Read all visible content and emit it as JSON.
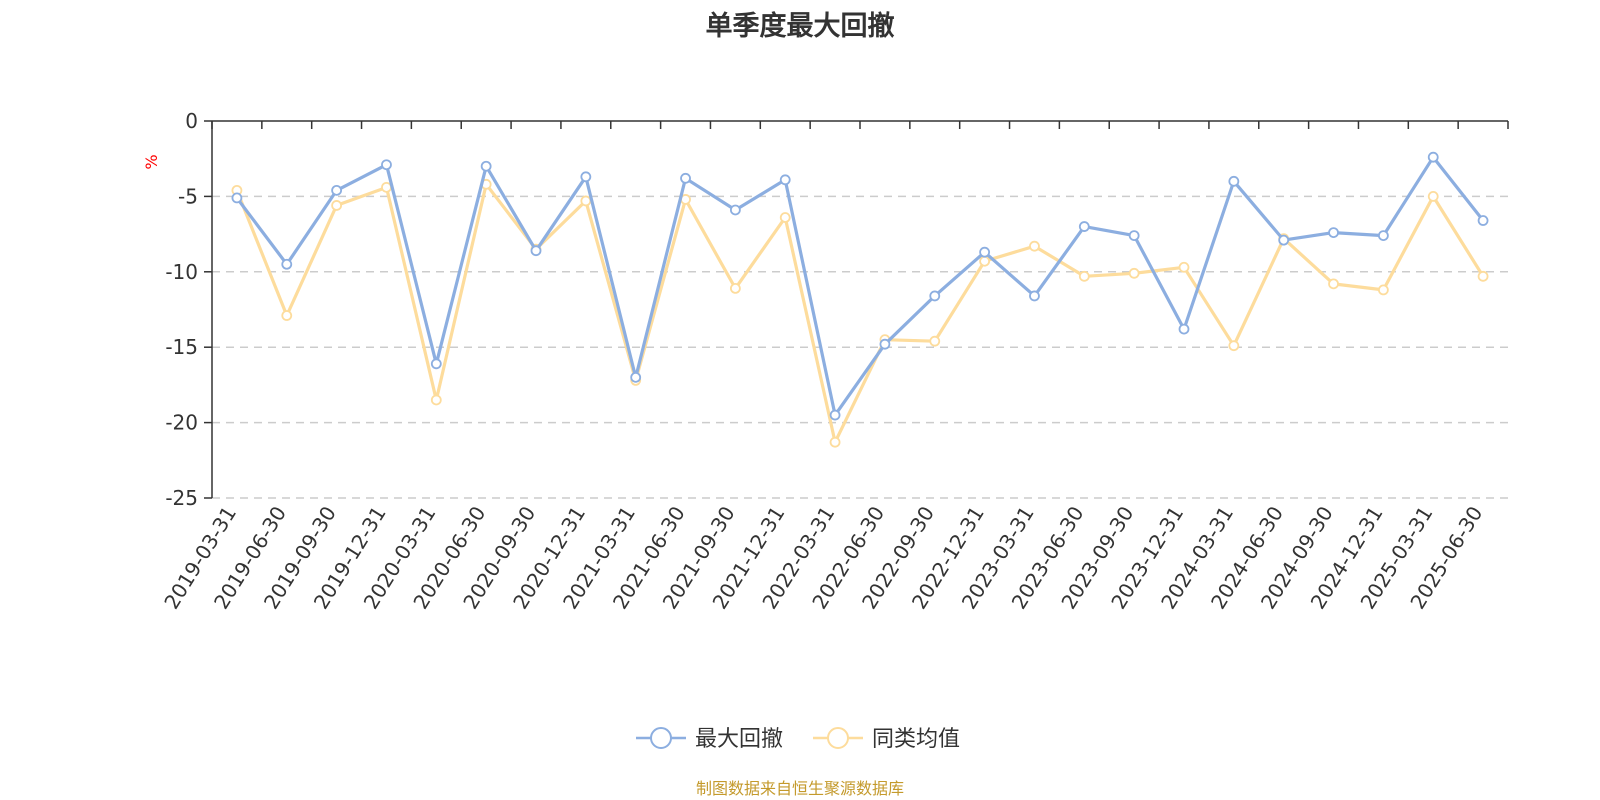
{
  "source_note": "制图数据来自恒生聚源数据库",
  "colors": {
    "series_max_drawdown": "#8caee0",
    "series_peer_average": "#fddc9c",
    "axis": "#333333",
    "grid": "#cccccc",
    "unit_label": "#ff0000",
    "source_note": "#c49a2c"
  },
  "chart_data": {
    "type": "line",
    "title": "单季度最大回撤",
    "ylabel": "%",
    "xlabel": "",
    "ylim": [
      -25,
      0
    ],
    "yticks": [
      0,
      -5,
      -10,
      -15,
      -20,
      -25
    ],
    "grid": "horizontal-dashed",
    "legend_position": "bottom-center",
    "categories": [
      "2019-03-31",
      "2019-06-30",
      "2019-09-30",
      "2019-12-31",
      "2020-03-31",
      "2020-06-30",
      "2020-09-30",
      "2020-12-31",
      "2021-03-31",
      "2021-06-30",
      "2021-09-30",
      "2021-12-31",
      "2022-03-31",
      "2022-06-30",
      "2022-09-30",
      "2022-12-31",
      "2023-03-31",
      "2023-06-30",
      "2023-09-30",
      "2023-12-31",
      "2024-03-31",
      "2024-06-30",
      "2024-09-30",
      "2024-12-31",
      "2025-03-31",
      "2025-06-30"
    ],
    "series": [
      {
        "name": "最大回撤",
        "values": [
          -5.1,
          -9.5,
          -4.6,
          -2.9,
          -16.1,
          -3.0,
          -8.6,
          -3.7,
          -17.0,
          -3.8,
          -5.9,
          -3.9,
          -19.5,
          -14.8,
          -11.6,
          -8.7,
          -11.6,
          -7.0,
          -7.6,
          -13.8,
          -4.0,
          -7.9,
          -7.4,
          -7.6,
          -2.4,
          -6.6
        ]
      },
      {
        "name": "同类均值",
        "values": [
          -4.6,
          -12.9,
          -5.6,
          -4.4,
          -18.5,
          -4.2,
          -8.5,
          -5.3,
          -17.2,
          -5.2,
          -11.1,
          -6.4,
          -21.3,
          -14.5,
          -14.6,
          -9.3,
          -8.3,
          -10.3,
          -10.1,
          -9.7,
          -14.9,
          -7.8,
          -10.8,
          -11.2,
          -5.0,
          -10.3
        ]
      }
    ]
  }
}
